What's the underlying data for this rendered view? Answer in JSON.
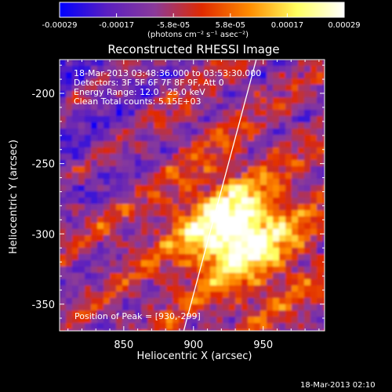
{
  "colorbar": {
    "tick_labels": [
      "-0.00029",
      "-0.00017",
      "-5.8e-05",
      "5.8e-05",
      "0.00017",
      "0.00029"
    ],
    "unit_label": "(photons cm⁻² s⁻¹ asec⁻²)",
    "range": [
      -0.00029,
      0.00029
    ],
    "colormap": [
      "#0000ff",
      "#5a1fc0",
      "#8a3a9a",
      "#e02a00",
      "#ff8c00",
      "#ffff60",
      "#ffffff"
    ]
  },
  "chart_data": {
    "type": "heatmap",
    "title": "Reconstructed RHESSI Image",
    "xlabel": "Heliocentric X (arcsec)",
    "ylabel": "Heliocentric Y (arcsec)",
    "xlim": [
      804,
      994
    ],
    "ylim": [
      -369,
      -176
    ],
    "x_ticks": [
      850,
      900,
      950
    ],
    "y_ticks": [
      -200,
      -250,
      -300,
      -350
    ],
    "peak": {
      "x": 930,
      "y": -299
    },
    "limb_line": [
      [
        893,
        -369
      ],
      [
        945,
        -176
      ]
    ],
    "annotations": [
      "18-Mar-2013 03:48:36.000 to 03:53:30.000",
      "Detectors: 3F 5F 6F 7F 8F 9F, Att 0",
      "Energy Range: 12.0 - 25.0 keV",
      "Clean     Total counts: 5.15E+03"
    ],
    "peak_label": "Position of Peak = [930,-299]"
  },
  "footer": {
    "timestamp": "18-Mar-2013 02:10"
  }
}
